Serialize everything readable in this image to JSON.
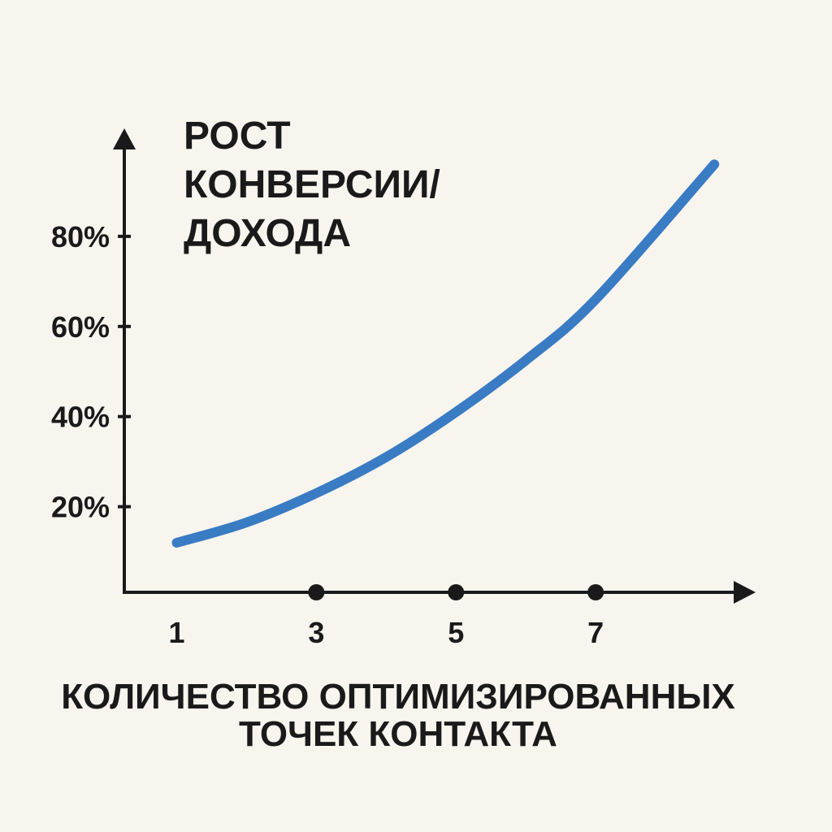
{
  "chart_data": {
    "type": "line",
    "title_lines": [
      "РОСТ",
      "КОНВЕРСИИ/",
      "ДОХОДА"
    ],
    "xlabel_lines": [
      "КОЛИЧЕСТВО ОПТИМИЗИРОВАННЫХ",
      "ТОЧЕК КОНТАКТА"
    ],
    "ylabel": "",
    "x_ticks": [
      "1",
      "3",
      "5",
      "7"
    ],
    "x_tick_markers": [
      "3",
      "5",
      "7"
    ],
    "y_ticks": [
      "20%",
      "40%",
      "60%",
      "80%"
    ],
    "xlim": [
      0.25,
      9
    ],
    "ylim": [
      1,
      100
    ],
    "grid": false,
    "series": [
      {
        "color": "#3a7cc4",
        "x": [
          1,
          2,
          3,
          4,
          5,
          6,
          7,
          8.7
        ],
        "y": [
          12,
          16.5,
          23,
          31,
          41,
          52.5,
          66,
          96
        ]
      }
    ]
  }
}
